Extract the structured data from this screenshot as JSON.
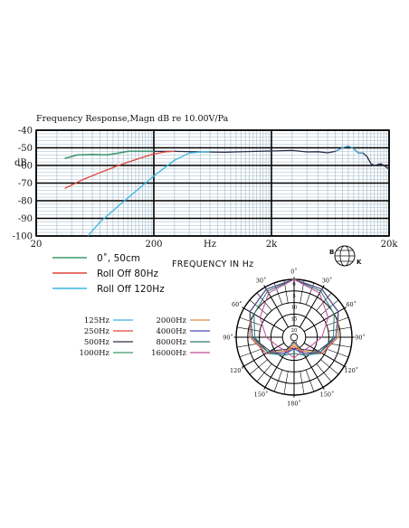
{
  "colors": {
    "green": "#3a9a6c",
    "red": "#e0443a",
    "cyan": "#3cb5e0",
    "dark": "#2a2a4a",
    "grid_minor": "#9fb8c8",
    "grid_major": "#000000"
  },
  "logo": {
    "letters": [
      "B",
      "K"
    ]
  },
  "chart_data": [
    {
      "type": "line",
      "title": "Frequency  Response,Magn  dB re 10.00V/Pa",
      "ylabel": "dB",
      "xlabel": "FREQUENCY  IN  Hz",
      "x_scale": "log",
      "xlim": [
        20,
        20000
      ],
      "ylim": [
        -100,
        -40
      ],
      "y_ticks": [
        "-40",
        "-50",
        "-60",
        "-70",
        "-80",
        "-90",
        "-100"
      ],
      "x_ticks": [
        "20",
        "200",
        "Hz",
        "2k",
        "20k"
      ],
      "grid": true,
      "series": [
        {
          "name": "0˚, 50cm",
          "color": "#3a9a6c",
          "points": [
            [
              35,
              -56
            ],
            [
              45,
              -54
            ],
            [
              60,
              -53.8
            ],
            [
              80,
              -54
            ],
            [
              100,
              -53
            ],
            [
              120,
              -52
            ],
            [
              150,
              -52
            ],
            [
              200,
              -52
            ],
            [
              300,
              -52
            ],
            [
              500,
              -52.3
            ],
            [
              800,
              -52.5
            ],
            [
              1000,
              -52.3
            ],
            [
              1500,
              -52
            ],
            [
              2000,
              -51.8
            ],
            [
              3000,
              -51.5
            ],
            [
              4000,
              -52.3
            ],
            [
              5000,
              -52.2
            ],
            [
              6000,
              -52.8
            ],
            [
              7000,
              -52
            ],
            [
              8000,
              -50
            ],
            [
              9000,
              -49
            ],
            [
              10000,
              -50.5
            ],
            [
              11000,
              -53
            ],
            [
              12000,
              -53
            ],
            [
              13000,
              -55
            ],
            [
              14000,
              -59
            ],
            [
              15000,
              -60
            ],
            [
              17000,
              -59
            ],
            [
              18000,
              -60
            ],
            [
              20000,
              -62
            ]
          ]
        },
        {
          "name": "Roll Off  80Hz",
          "color": "#e0443a",
          "points": [
            [
              35,
              -73
            ],
            [
              50,
              -68
            ],
            [
              70,
              -64
            ],
            [
              100,
              -60
            ],
            [
              150,
              -56
            ],
            [
              200,
              -53.5
            ],
            [
              250,
              -52.3
            ],
            [
              300,
              -52
            ]
          ]
        },
        {
          "name": "Roll Off  120Hz",
          "color": "#3cb5e0",
          "points": [
            [
              55,
              -100
            ],
            [
              70,
              -92
            ],
            [
              100,
              -83
            ],
            [
              150,
              -73
            ],
            [
              200,
              -66
            ],
            [
              300,
              -57
            ],
            [
              400,
              -53
            ],
            [
              500,
              -52.4
            ],
            [
              600,
              -52.2
            ]
          ]
        }
      ]
    },
    {
      "type": "polar",
      "angle_labels": [
        "0˚",
        "30˚",
        "60˚",
        "90˚",
        "120˚",
        "150˚",
        "180˚",
        "150˚",
        "120˚",
        "90˚",
        "60˚",
        "30˚"
      ],
      "radial_labels": [
        "0",
        "5",
        "10",
        "15",
        "20",
        "25"
      ],
      "legend": [
        {
          "name": "125Hz",
          "color": "#3cb5e0"
        },
        {
          "name": "250Hz",
          "color": "#e0443a"
        },
        {
          "name": "500Hz",
          "color": "#2a2a4a"
        },
        {
          "name": "1000Hz",
          "color": "#3a9a6c"
        },
        {
          "name": "2000Hz",
          "color": "#e08a3a"
        },
        {
          "name": "4000Hz",
          "color": "#4a4ab0"
        },
        {
          "name": "8000Hz",
          "color": "#2a7a6a"
        },
        {
          "name": "16000Hz",
          "color": "#c04a9a"
        }
      ],
      "series": [
        {
          "name": "125Hz",
          "color": "#3cb5e0",
          "angles_deg": [
            0,
            30,
            60,
            90,
            120,
            150,
            180
          ],
          "db": [
            0,
            -1,
            -3,
            -6,
            -11,
            -16,
            -20
          ]
        },
        {
          "name": "250Hz",
          "color": "#e0443a",
          "angles_deg": [
            0,
            30,
            60,
            90,
            120,
            150,
            180
          ],
          "db": [
            0,
            -1,
            -3,
            -6,
            -11,
            -17,
            -21
          ]
        },
        {
          "name": "500Hz",
          "color": "#2a2a4a",
          "angles_deg": [
            0,
            30,
            60,
            90,
            120,
            150,
            180
          ],
          "db": [
            0,
            -1,
            -3,
            -7,
            -13,
            -19,
            -23
          ]
        },
        {
          "name": "1000Hz",
          "color": "#3a9a6c",
          "angles_deg": [
            0,
            30,
            60,
            90,
            120,
            150,
            180
          ],
          "db": [
            0,
            -1,
            -3,
            -6,
            -12,
            -18,
            -22
          ]
        },
        {
          "name": "2000Hz",
          "color": "#e08a3a",
          "angles_deg": [
            0,
            30,
            60,
            90,
            120,
            150,
            180
          ],
          "db": [
            0,
            -1,
            -3,
            -6,
            -12,
            -18,
            -22
          ]
        },
        {
          "name": "4000Hz",
          "color": "#4a4ab0",
          "angles_deg": [
            0,
            30,
            60,
            90,
            120,
            150,
            180
          ],
          "db": [
            0,
            -1,
            -3,
            -7,
            -12,
            -17,
            -20
          ]
        },
        {
          "name": "8000Hz",
          "color": "#2a7a6a",
          "angles_deg": [
            0,
            30,
            60,
            90,
            120,
            150,
            180
          ],
          "db": [
            0,
            -2,
            -5,
            -8,
            -12,
            -16,
            -18
          ]
        },
        {
          "name": "16000Hz",
          "color": "#c04a9a",
          "angles_deg": [
            0,
            30,
            60,
            90,
            120,
            150,
            180
          ],
          "db": [
            0,
            -3,
            -8,
            -13,
            -17,
            -18,
            -16
          ]
        }
      ]
    }
  ]
}
